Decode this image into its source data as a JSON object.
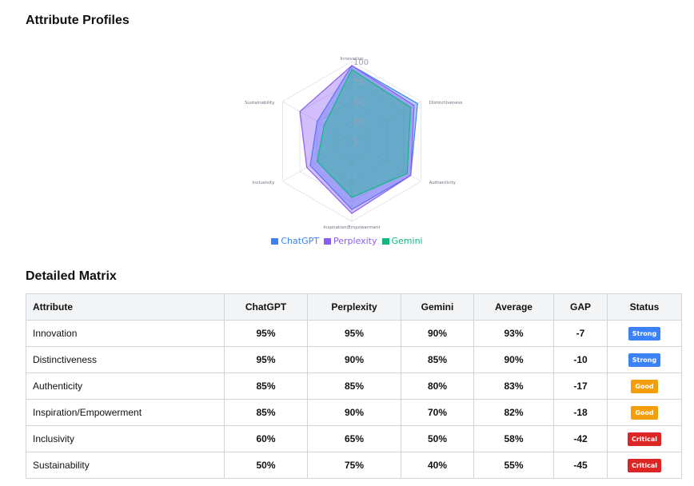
{
  "sections": {
    "profiles_title": "Attribute Profiles",
    "matrix_title": "Detailed Matrix"
  },
  "chart_data": {
    "type": "radar",
    "axes": [
      "Innovation",
      "Distinctiveness",
      "Authenticity",
      "Inspiration/Empowerment",
      "Inclusivity",
      "Sustainability"
    ],
    "rlim": [
      0,
      100
    ],
    "ticks": [
      "0",
      "25",
      "50",
      "75",
      "100"
    ],
    "series": [
      {
        "name": "ChatGPT",
        "color": "#3b82f6",
        "values": [
          95,
          95,
          85,
          85,
          60,
          50
        ]
      },
      {
        "name": "Perplexity",
        "color": "#8b5cf6",
        "values": [
          95,
          90,
          85,
          90,
          65,
          75
        ]
      },
      {
        "name": "Gemini",
        "color": "#10b981",
        "values": [
          90,
          85,
          80,
          70,
          50,
          40
        ]
      }
    ],
    "legend_position": "bottom",
    "grid": true
  },
  "table": {
    "headers": [
      "Attribute",
      "ChatGPT",
      "Perplexity",
      "Gemini",
      "Average",
      "GAP",
      "Status"
    ],
    "rows": [
      {
        "attribute": "Innovation",
        "chatgpt": "95%",
        "perplexity": "95%",
        "gemini": "90%",
        "average": "93%",
        "gap": "-7",
        "status": "Strong",
        "status_color": "#3b82f6"
      },
      {
        "attribute": "Distinctiveness",
        "chatgpt": "95%",
        "perplexity": "90%",
        "gemini": "85%",
        "average": "90%",
        "gap": "-10",
        "status": "Strong",
        "status_color": "#3b82f6"
      },
      {
        "attribute": "Authenticity",
        "chatgpt": "85%",
        "perplexity": "85%",
        "gemini": "80%",
        "average": "83%",
        "gap": "-17",
        "status": "Good",
        "status_color": "#f59e0b"
      },
      {
        "attribute": "Inspiration/Empowerment",
        "chatgpt": "85%",
        "perplexity": "90%",
        "gemini": "70%",
        "average": "82%",
        "gap": "-18",
        "status": "Good",
        "status_color": "#f59e0b"
      },
      {
        "attribute": "Inclusivity",
        "chatgpt": "60%",
        "perplexity": "65%",
        "gemini": "50%",
        "average": "58%",
        "gap": "-42",
        "status": "Critical",
        "status_color": "#dc2626"
      },
      {
        "attribute": "Sustainability",
        "chatgpt": "50%",
        "perplexity": "75%",
        "gemini": "40%",
        "average": "55%",
        "gap": "-45",
        "status": "Critical",
        "status_color": "#dc2626"
      }
    ]
  }
}
